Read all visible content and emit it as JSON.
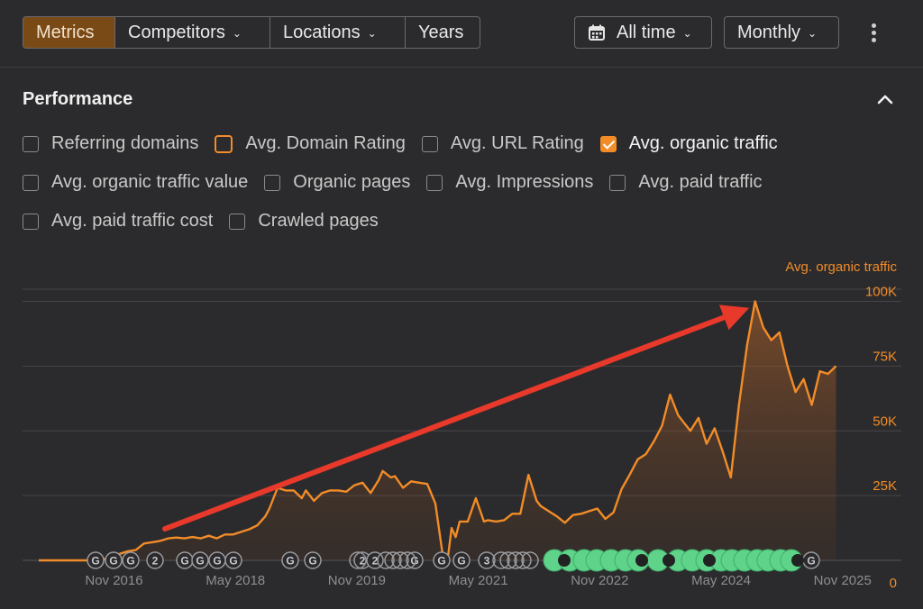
{
  "toolbar": {
    "metrics": "Metrics",
    "competitors": "Competitors",
    "locations": "Locations",
    "years": "Years",
    "range": "All time",
    "interval": "Monthly"
  },
  "section": {
    "title": "Performance"
  },
  "checkboxes": [
    {
      "label": "Referring domains",
      "checked": false
    },
    {
      "label": "Avg. Domain Rating",
      "checked": false,
      "highlight": true
    },
    {
      "label": "Avg. URL Rating",
      "checked": false
    },
    {
      "label": "Avg. organic traffic",
      "checked": true
    },
    {
      "label": "Avg. organic traffic value",
      "checked": false
    },
    {
      "label": "Organic pages",
      "checked": false
    },
    {
      "label": "Avg. Impressions",
      "checked": false
    },
    {
      "label": "Avg. paid traffic",
      "checked": false
    },
    {
      "label": "Avg. paid traffic cost",
      "checked": false
    },
    {
      "label": "Crawled pages",
      "checked": false
    }
  ],
  "colors": {
    "accent": "#f28c28",
    "arrow": "#e8392b",
    "marker_green": "#5fd38a"
  },
  "chart_data": {
    "type": "area",
    "series": [
      {
        "name": "Avg. organic traffic"
      }
    ],
    "yaxis_title": "Avg. organic traffic",
    "y_ticks": [
      "0",
      "25K",
      "50K",
      "75K",
      "100K"
    ],
    "y_tick_values": [
      0,
      25000,
      50000,
      75000,
      100000
    ],
    "ylim": [
      0,
      112000
    ],
    "x_tick_labels": [
      "Nov 2016",
      "May 2018",
      "Nov 2019",
      "May 2021",
      "Nov 2022",
      "May 2024",
      "Nov 2025"
    ],
    "x_tick_values": [
      2016.83,
      2018.33,
      2019.83,
      2021.33,
      2022.83,
      2024.33,
      2025.83
    ],
    "xlim": [
      2015.7,
      2026.0
    ],
    "x": [
      2015.9,
      2016.0,
      2016.2,
      2016.4,
      2016.6,
      2016.7,
      2016.8,
      2016.9,
      2017.0,
      2017.1,
      2017.2,
      2017.3,
      2017.4,
      2017.5,
      2017.6,
      2017.7,
      2017.8,
      2017.9,
      2018.0,
      2018.1,
      2018.2,
      2018.3,
      2018.4,
      2018.5,
      2018.6,
      2018.7,
      2018.75,
      2018.85,
      2018.95,
      2019.05,
      2019.15,
      2019.2,
      2019.3,
      2019.4,
      2019.5,
      2019.6,
      2019.7,
      2019.8,
      2019.9,
      2020.0,
      2020.1,
      2020.15,
      2020.25,
      2020.3,
      2020.4,
      2020.5,
      2020.6,
      2020.7,
      2020.8,
      2020.85,
      2020.9,
      2020.95,
      2021.0,
      2021.05,
      2021.1,
      2021.2,
      2021.3,
      2021.4,
      2021.45,
      2021.55,
      2021.65,
      2021.75,
      2021.85,
      2021.95,
      2022.05,
      2022.1,
      2022.2,
      2022.3,
      2022.4,
      2022.5,
      2022.6,
      2022.7,
      2022.8,
      2022.9,
      2023.0,
      2023.05,
      2023.1,
      2023.2,
      2023.3,
      2023.4,
      2023.5,
      2023.6,
      2023.7,
      2023.8,
      2023.85,
      2023.95,
      2024.05,
      2024.15,
      2024.25,
      2024.35,
      2024.45,
      2024.55,
      2024.65,
      2024.75,
      2024.85,
      2024.95,
      2025.05,
      2025.15,
      2025.25,
      2025.35,
      2025.45,
      2025.55,
      2025.65,
      2025.75
    ],
    "values": [
      0,
      0,
      0,
      0,
      0,
      300,
      1500,
      2500,
      3500,
      4000,
      6500,
      7000,
      7500,
      8500,
      8800,
      8500,
      9000,
      8500,
      9500,
      8500,
      10000,
      10000,
      11000,
      12000,
      13500,
      17000,
      20000,
      28000,
      27000,
      27000,
      24000,
      27000,
      23000,
      26000,
      27000,
      27000,
      26500,
      29000,
      30000,
      26000,
      31000,
      34500,
      32000,
      32500,
      28000,
      30500,
      30000,
      29500,
      22000,
      11000,
      0,
      0,
      12500,
      9000,
      15000,
      15000,
      24000,
      15000,
      15500,
      15000,
      15500,
      18000,
      18000,
      33000,
      23000,
      21000,
      19000,
      17000,
      14500,
      17500,
      18000,
      19000,
      20000,
      16000,
      18500,
      23000,
      27500,
      33000,
      39000,
      41000,
      46000,
      52000,
      64000,
      56000,
      54000,
      50000,
      55000,
      45000,
      51000,
      42000,
      32000,
      60000,
      83000,
      100000,
      90000,
      85000,
      88000,
      75000,
      65000,
      70000,
      60000,
      73000,
      72000,
      75000
    ],
    "annotation_markers": [
      "G",
      "G",
      "G",
      "2",
      "G",
      "G",
      "G",
      "G",
      "G",
      "G",
      "2",
      "2",
      "G",
      "G",
      "G",
      "3",
      "G",
      "G"
    ]
  }
}
